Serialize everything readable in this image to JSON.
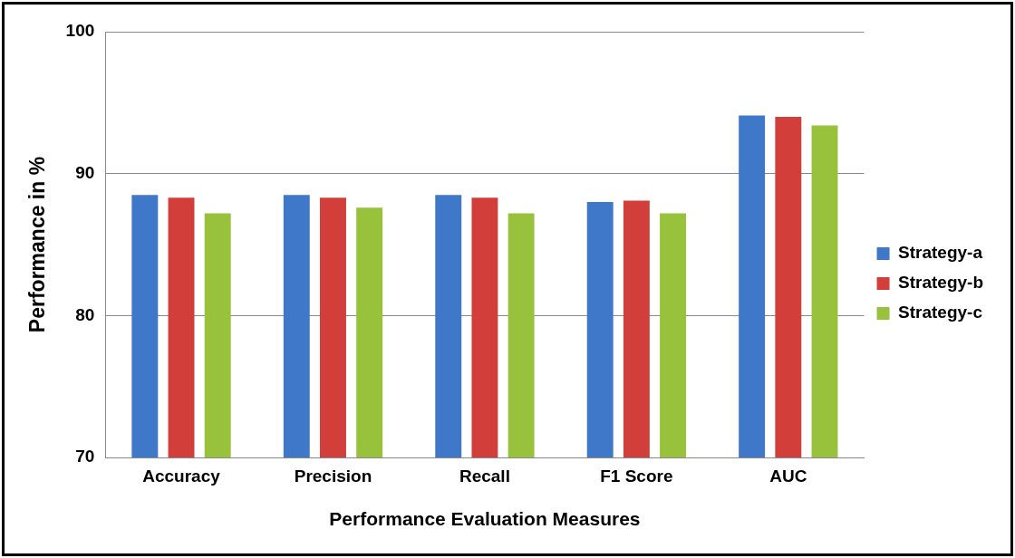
{
  "chart_data": {
    "type": "bar",
    "xlabel": "Performance Evaluation Measures",
    "ylabel": "Performance in %",
    "categories": [
      "Accuracy",
      "Precision",
      "Recall",
      "F1 Score",
      "AUC"
    ],
    "series": [
      {
        "name": "Strategy-a",
        "color": "#3f78c9",
        "values": [
          88.5,
          88.5,
          88.5,
          88.0,
          94.1
        ]
      },
      {
        "name": "Strategy-b",
        "color": "#d23f3a",
        "values": [
          88.3,
          88.3,
          88.3,
          88.1,
          94.0
        ]
      },
      {
        "name": "Strategy-c",
        "color": "#98c23c",
        "values": [
          87.2,
          87.6,
          87.2,
          87.2,
          93.4
        ]
      }
    ],
    "ylim": [
      70,
      100
    ],
    "yticks": [
      70,
      80,
      90,
      100
    ],
    "grid": "y",
    "legend": "right"
  }
}
